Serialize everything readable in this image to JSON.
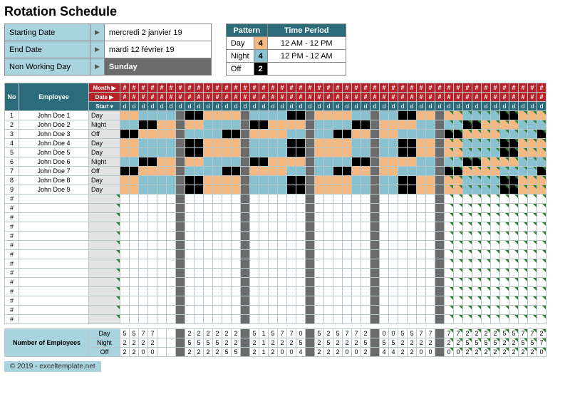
{
  "title": "Rotation Schedule",
  "info": {
    "labels": {
      "start": "Starting Date",
      "end": "End Date",
      "nwd": "Non Working Day"
    },
    "start_arrow": "▶",
    "end_arrow": "▶",
    "nwd_arrow": "▶",
    "start": "mercredi 2 janvier 19",
    "end": "mardi 12 février 19",
    "nwd": "Sunday"
  },
  "pattern": {
    "head1": "Pattern",
    "head2": "Time Period",
    "rows": [
      {
        "label": "Day",
        "count": "4",
        "period": "12 AM - 12 PM",
        "cell_bg": "#f4b883"
      },
      {
        "label": "Night",
        "count": "4",
        "period": "12 PM - 12 AM",
        "cell_bg": "#88c2d0"
      },
      {
        "label": "Off",
        "count": "2",
        "period": "",
        "cell_bg": "#000",
        "cell_fg": "#fff"
      }
    ]
  },
  "grid": {
    "header_no": "No",
    "header_emp": "Employee",
    "header_month": "Month ▶",
    "header_date": "Date ▶",
    "header_start": "Start ▾",
    "col_hash": "#",
    "col_d": "d",
    "groups": [
      6,
      1,
      6,
      1,
      6,
      1,
      6,
      1,
      6,
      1,
      11
    ],
    "employees": [
      {
        "no": "1",
        "name": "John Doe 1",
        "start": "Day",
        "cells": [
          "d",
          "d",
          "n",
          "n",
          "n",
          "n",
          "g",
          "o",
          "o",
          "d",
          "d",
          "d",
          "d",
          "g",
          "n",
          "n",
          "n",
          "n",
          "o",
          "o",
          "g",
          "d",
          "d",
          "d",
          "d",
          "n",
          "n",
          "g",
          "n",
          "n",
          "o",
          "o",
          "d",
          "d",
          "g",
          "d",
          "d",
          "n",
          "n",
          "n",
          "n",
          "o",
          "o",
          "d",
          "d",
          "d"
        ]
      },
      {
        "no": "2",
        "name": "John Doe 2",
        "start": "Night",
        "cells": [
          "n",
          "n",
          "o",
          "o",
          "d",
          "d",
          "g",
          "d",
          "d",
          "n",
          "n",
          "n",
          "n",
          "g",
          "o",
          "o",
          "d",
          "d",
          "d",
          "d",
          "g",
          "n",
          "n",
          "n",
          "n",
          "o",
          "o",
          "g",
          "d",
          "d",
          "d",
          "d",
          "n",
          "n",
          "g",
          "n",
          "n",
          "o",
          "o",
          "d",
          "d",
          "d",
          "d",
          "n",
          "n",
          "n"
        ]
      },
      {
        "no": "3",
        "name": "John Doe 3",
        "start": "Off",
        "cells": [
          "o",
          "o",
          "d",
          "d",
          "d",
          "d",
          "g",
          "n",
          "n",
          "n",
          "n",
          "o",
          "o",
          "g",
          "d",
          "d",
          "d",
          "d",
          "n",
          "n",
          "g",
          "n",
          "n",
          "o",
          "o",
          "d",
          "d",
          "g",
          "d",
          "d",
          "n",
          "n",
          "n",
          "n",
          "g",
          "o",
          "o",
          "d",
          "d",
          "d",
          "d",
          "n",
          "n",
          "n",
          "n",
          "o"
        ]
      },
      {
        "no": "4",
        "name": "John Doe 4",
        "start": "Day",
        "cells": [
          "d",
          "d",
          "n",
          "n",
          "n",
          "n",
          "g",
          "o",
          "o",
          "d",
          "d",
          "d",
          "d",
          "g",
          "n",
          "n",
          "n",
          "n",
          "o",
          "o",
          "g",
          "d",
          "d",
          "d",
          "d",
          "n",
          "n",
          "g",
          "n",
          "n",
          "o",
          "o",
          "d",
          "d",
          "g",
          "d",
          "d",
          "n",
          "n",
          "n",
          "n",
          "o",
          "o",
          "d",
          "d",
          "d"
        ]
      },
      {
        "no": "5",
        "name": "John Doe 5",
        "start": "Day",
        "cells": [
          "d",
          "d",
          "n",
          "n",
          "n",
          "n",
          "g",
          "o",
          "o",
          "d",
          "d",
          "d",
          "d",
          "g",
          "n",
          "n",
          "n",
          "n",
          "o",
          "o",
          "g",
          "d",
          "d",
          "d",
          "d",
          "n",
          "n",
          "g",
          "n",
          "n",
          "o",
          "o",
          "d",
          "d",
          "g",
          "d",
          "d",
          "n",
          "n",
          "n",
          "n",
          "o",
          "o",
          "d",
          "d",
          "d"
        ]
      },
      {
        "no": "6",
        "name": "John Doe 6",
        "start": "Night",
        "cells": [
          "n",
          "n",
          "o",
          "o",
          "d",
          "d",
          "g",
          "d",
          "d",
          "n",
          "n",
          "n",
          "n",
          "g",
          "o",
          "o",
          "d",
          "d",
          "d",
          "d",
          "g",
          "n",
          "n",
          "n",
          "n",
          "o",
          "o",
          "g",
          "d",
          "d",
          "d",
          "d",
          "n",
          "n",
          "g",
          "n",
          "n",
          "o",
          "o",
          "d",
          "d",
          "d",
          "d",
          "n",
          "n",
          "n"
        ]
      },
      {
        "no": "7",
        "name": "John Doe 7",
        "start": "Off",
        "cells": [
          "o",
          "o",
          "d",
          "d",
          "d",
          "d",
          "g",
          "n",
          "n",
          "n",
          "n",
          "o",
          "o",
          "g",
          "d",
          "d",
          "d",
          "d",
          "n",
          "n",
          "g",
          "n",
          "n",
          "o",
          "o",
          "d",
          "d",
          "g",
          "d",
          "d",
          "n",
          "n",
          "n",
          "n",
          "g",
          "o",
          "o",
          "d",
          "d",
          "d",
          "d",
          "n",
          "n",
          "n",
          "n",
          "o"
        ]
      },
      {
        "no": "8",
        "name": "John Doe 8",
        "start": "Day",
        "cells": [
          "d",
          "d",
          "n",
          "n",
          "n",
          "n",
          "g",
          "o",
          "o",
          "d",
          "d",
          "d",
          "d",
          "g",
          "n",
          "n",
          "n",
          "n",
          "o",
          "o",
          "g",
          "d",
          "d",
          "d",
          "d",
          "n",
          "n",
          "g",
          "n",
          "n",
          "o",
          "o",
          "d",
          "d",
          "g",
          "d",
          "d",
          "n",
          "n",
          "n",
          "n",
          "o",
          "o",
          "d",
          "d",
          "d"
        ]
      },
      {
        "no": "9",
        "name": "John Doe 9",
        "start": "Day",
        "cells": [
          "d",
          "d",
          "n",
          "n",
          "n",
          "n",
          "g",
          "o",
          "o",
          "d",
          "d",
          "d",
          "d",
          "g",
          "n",
          "n",
          "n",
          "n",
          "o",
          "o",
          "g",
          "d",
          "d",
          "d",
          "d",
          "n",
          "n",
          "g",
          "n",
          "n",
          "o",
          "o",
          "d",
          "d",
          "g",
          "d",
          "d",
          "n",
          "n",
          "n",
          "n",
          "o",
          "o",
          "d",
          "d",
          "d"
        ]
      }
    ],
    "empty_rows": 14,
    "empty_label": "#"
  },
  "summary": {
    "title": "Number of Employees",
    "rows": [
      {
        "label": "Day",
        "vals": [
          "5",
          "5",
          "7",
          "7",
          "",
          "",
          "",
          "2",
          "2",
          "2",
          "2",
          "2",
          "2",
          "",
          "5",
          "1",
          "5",
          "7",
          "7",
          "0",
          "",
          "5",
          "2",
          "5",
          "7",
          "7",
          "2",
          "",
          "0",
          "0",
          "5",
          "5",
          "7",
          "7",
          "",
          "7",
          "7",
          "2",
          "2",
          "2",
          "2",
          "5",
          "5",
          "7",
          "7",
          "2"
        ]
      },
      {
        "label": "Night",
        "vals": [
          "2",
          "2",
          "2",
          "2",
          "",
          "",
          "",
          "5",
          "5",
          "5",
          "5",
          "2",
          "2",
          "",
          "2",
          "1",
          "2",
          "2",
          "2",
          "5",
          "",
          "2",
          "5",
          "2",
          "2",
          "2",
          "5",
          "",
          "5",
          "5",
          "2",
          "2",
          "2",
          "2",
          "",
          "2",
          "2",
          "5",
          "5",
          "5",
          "5",
          "2",
          "2",
          "5",
          "5",
          "7"
        ]
      },
      {
        "label": "Off",
        "vals": [
          "2",
          "2",
          "0",
          "0",
          "",
          "",
          "",
          "2",
          "2",
          "2",
          "2",
          "5",
          "5",
          "",
          "2",
          "1",
          "2",
          "0",
          "0",
          "4",
          "",
          "2",
          "2",
          "2",
          "0",
          "0",
          "2",
          "",
          "4",
          "4",
          "2",
          "2",
          "0",
          "0",
          "",
          "0",
          "0",
          "2",
          "2",
          "2",
          "2",
          "2",
          "2",
          "2",
          "2",
          "0"
        ]
      }
    ]
  },
  "footer": "© 2019 - exceltemplate.net",
  "colors": {
    "header_blue": "#2b6b7a",
    "header_red": "#b8232a",
    "light_blue": "#a9d3df",
    "day": "#f4b883",
    "night": "#88c2d0",
    "off": "#000000",
    "gap": "#6b6b6b",
    "grid_border": "#b9c7cb",
    "tri_green": "#2e7d32"
  }
}
